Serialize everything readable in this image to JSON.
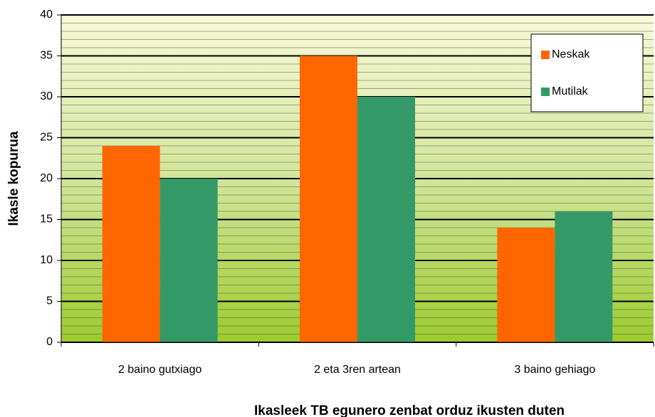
{
  "chart_data": {
    "type": "bar",
    "x_label": "Ikasleek TB egunero zenbat orduz ikusten duten",
    "y_label": "Ikasle kopurua",
    "categories": [
      "2 baino gutxiago",
      "2 eta 3ren artean",
      "3 baino gehiago"
    ],
    "series": [
      {
        "name": "Neskak",
        "color": "#ff6600",
        "values": [
          24,
          35,
          14
        ]
      },
      {
        "name": "Mutilak",
        "color": "#339966",
        "values": [
          20,
          30,
          16
        ]
      }
    ],
    "ylim": [
      0,
      40
    ],
    "yticks": [
      0,
      5,
      10,
      15,
      20,
      25,
      30,
      35,
      40
    ],
    "grid": true,
    "legend": "top-right"
  }
}
